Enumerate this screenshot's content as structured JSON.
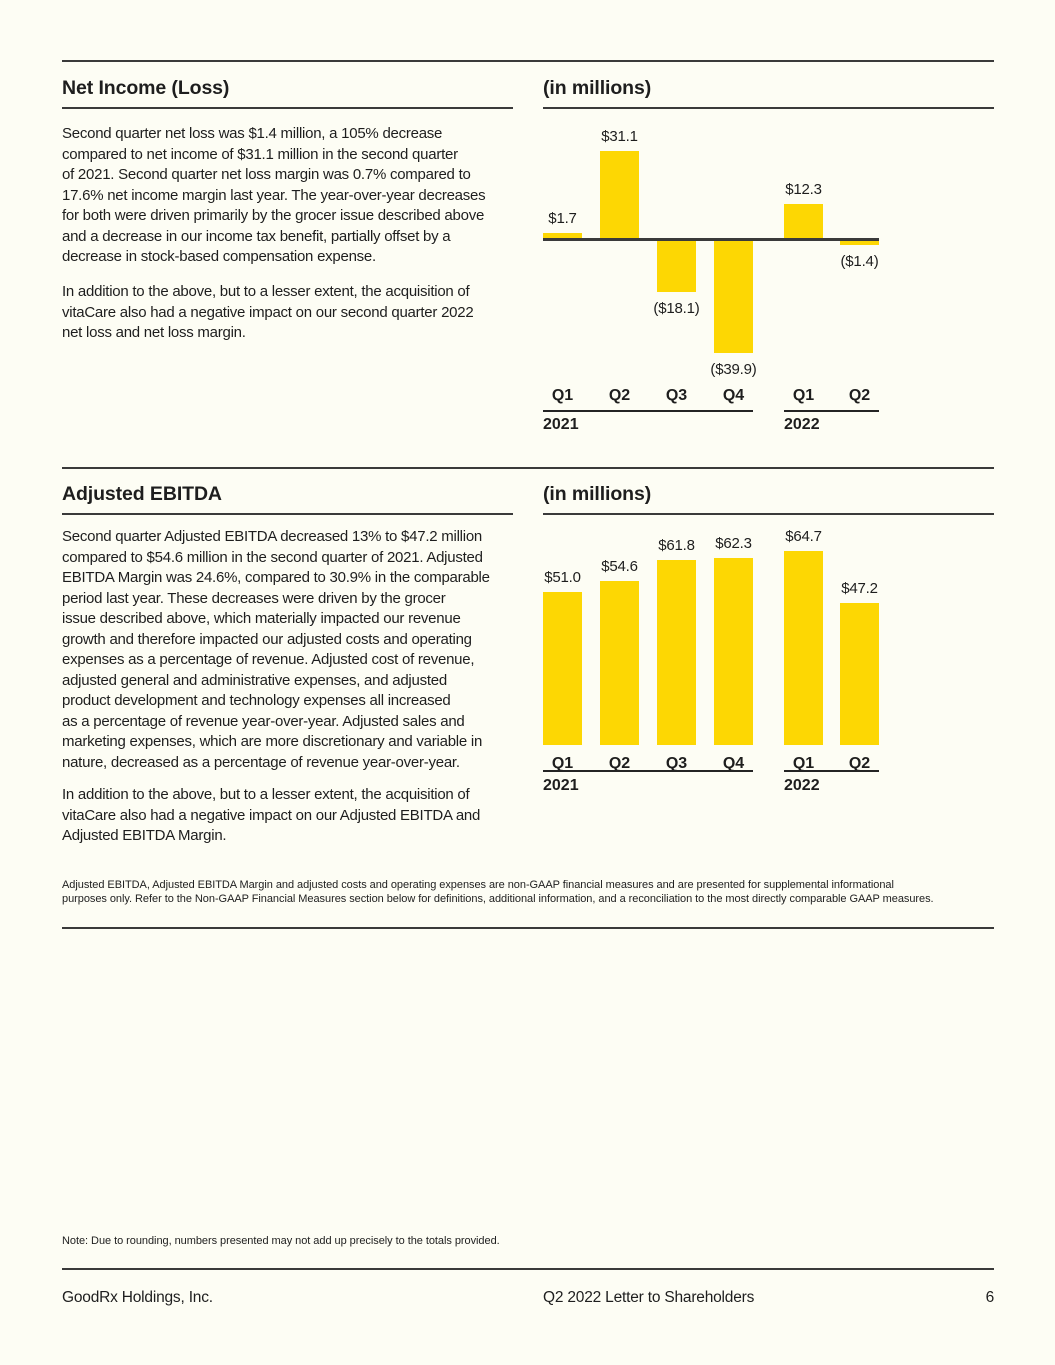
{
  "page_background": "#FDFDF4",
  "accent_color": "#FDD703",
  "sections": [
    {
      "heading": "Net Income (Loss)",
      "chart_title": "(in millions)",
      "paragraphs": [
        "Second quarter net loss was $1.4 million, a 105% decrease\ncompared to net income of $31.1 million in the second quarter\nof 2021. Second quarter net loss margin was 0.7% compared to\n17.6% net income margin last year. The year-over-year decreases\nfor both were driven primarily by the grocer issue described above\nand a decrease in our income tax benefit, partially offset by a\ndecrease in stock-based compensation expense.",
        "In addition to the above, but to a lesser extent, the acquisition of\nvitaCare also had a negative impact on our second quarter 2022\nnet loss and net loss margin."
      ]
    },
    {
      "heading": "Adjusted EBITDA",
      "chart_title": "(in millions)",
      "paragraphs": [
        "Second quarter Adjusted EBITDA decreased 13% to $47.2 million\ncompared to $54.6 million in the second quarter of 2021. Adjusted\nEBITDA Margin was 24.6%, compared to 30.9% in the comparable\nperiod last year. These decreases were driven by the grocer\nissue described above, which materially impacted our revenue\ngrowth and therefore impacted our adjusted costs and operating\nexpenses as a percentage of revenue. Adjusted cost of revenue,\nadjusted general and administrative expenses, and adjusted\nproduct development and technology expenses all increased\nas a percentage of revenue year-over-year. Adjusted sales and\nmarketing expenses, which are more discretionary and variable in\nnature, decreased as a percentage of revenue year-over-year.",
        "In addition to the above, but to a lesser extent, the acquisition of\nvitaCare also had a negative impact on our Adjusted EBITDA and\nAdjusted EBITDA Margin."
      ],
      "footnote": "Adjusted EBITDA, Adjusted EBITDA Margin and adjusted costs and operating expenses are non-GAAP financial measures and are presented for supplemental informational\npurposes only. Refer to the Non-GAAP Financial Measures section below for definitions, additional information, and a reconciliation to the most directly comparable GAAP measures."
    }
  ],
  "note": "Note: Due to rounding, numbers presented may not add up precisely to the totals provided.",
  "footer": {
    "company": "GoodRx Holdings, Inc.",
    "document_title": "Q2 2022 Letter to Shareholders",
    "page_number": "6"
  },
  "chart_data": [
    {
      "type": "bar",
      "section": "Net Income (Loss)",
      "title": "(in millions)",
      "categories": [
        "Q1 2021",
        "Q2 2021",
        "Q3 2021",
        "Q4 2021",
        "Q1 2022",
        "Q2 2022"
      ],
      "values": [
        1.7,
        31.1,
        -18.1,
        -39.9,
        12.3,
        -1.4
      ],
      "value_labels": [
        "$1.7",
        "$31.1",
        "($18.1)",
        "($39.9)",
        "$12.3",
        "($1.4)"
      ],
      "tick_labels": [
        "Q1",
        "Q2",
        "Q3",
        "Q4",
        "Q1",
        "Q2"
      ],
      "groups": [
        {
          "label": "2021",
          "from": 0,
          "to": 3
        },
        {
          "label": "2022",
          "from": 4,
          "to": 5
        }
      ],
      "bar_color": "#FDD703",
      "xlabel": "",
      "ylabel": "",
      "ylim": [
        -45,
        35
      ],
      "grid": false,
      "legend": false,
      "zero_axis": true
    },
    {
      "type": "bar",
      "section": "Adjusted EBITDA",
      "title": "(in millions)",
      "categories": [
        "Q1 2021",
        "Q2 2021",
        "Q3 2021",
        "Q4 2021",
        "Q1 2022",
        "Q2 2022"
      ],
      "values": [
        51.0,
        54.6,
        61.8,
        62.3,
        64.7,
        47.2
      ],
      "value_labels": [
        "$51.0",
        "$54.6",
        "$61.8",
        "$62.3",
        "$64.7",
        "$47.2"
      ],
      "tick_labels": [
        "Q1",
        "Q2",
        "Q3",
        "Q4",
        "Q1",
        "Q2"
      ],
      "groups": [
        {
          "label": "2021",
          "from": 0,
          "to": 3
        },
        {
          "label": "2022",
          "from": 4,
          "to": 5
        }
      ],
      "bar_color": "#FDD703",
      "xlabel": "",
      "ylabel": "",
      "ylim": [
        0,
        70
      ],
      "grid": false,
      "legend": false,
      "zero_axis": false
    }
  ]
}
